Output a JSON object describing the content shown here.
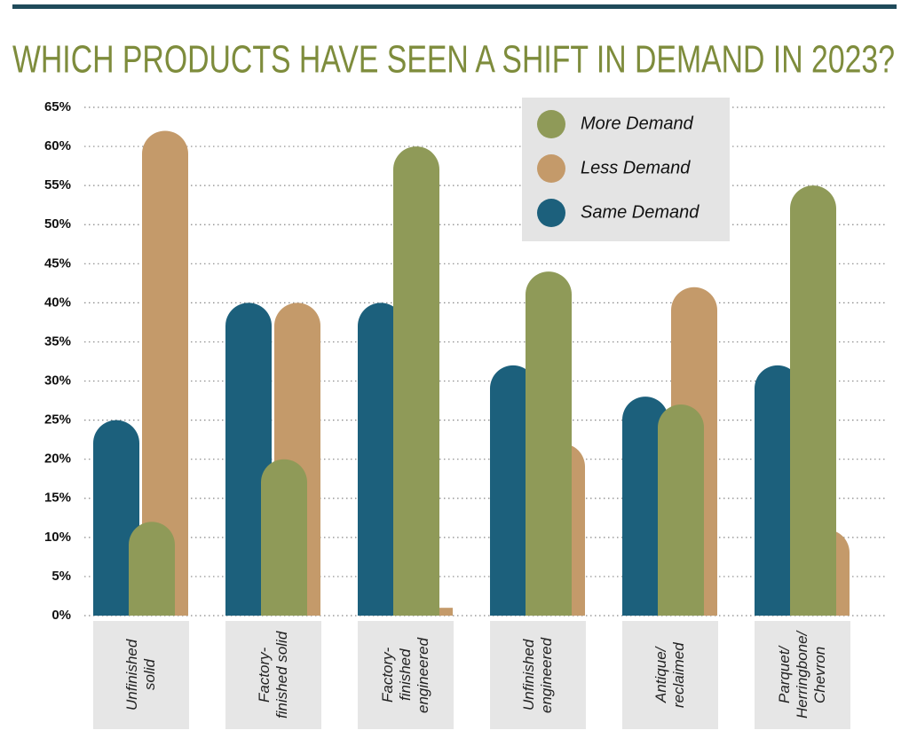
{
  "chart_data": {
    "type": "bar",
    "title": "WHICH PRODUCTS HAVE SEEN A SHIFT IN DEMAND IN 2023?",
    "categories": [
      "Unfinished solid",
      "Factory-finished solid",
      "Factory-finished engineered",
      "Unfinished engineered",
      "Antique/reclaimed",
      "Parquet/Herringbone/Chevron"
    ],
    "series": [
      {
        "name": "More Demand",
        "color": "#8f9a58",
        "values": [
          12,
          20,
          60,
          44,
          27,
          55
        ]
      },
      {
        "name": "Less Demand",
        "color": "#c49a6a",
        "values": [
          62,
          40,
          1,
          22,
          42,
          11
        ]
      },
      {
        "name": "Same Demand",
        "color": "#1c607c",
        "values": [
          25,
          40,
          40,
          32,
          28,
          32
        ]
      }
    ],
    "ylim": [
      0,
      65
    ],
    "yticks": [
      {
        "value": 0,
        "label": "0%"
      },
      {
        "value": 5,
        "label": "5%"
      },
      {
        "value": 10,
        "label": "10%"
      },
      {
        "value": 15,
        "label": "15%"
      },
      {
        "value": 20,
        "label": "20%"
      },
      {
        "value": 25,
        "label": "25%"
      },
      {
        "value": 30,
        "label": "30%"
      },
      {
        "value": 35,
        "label": "35%"
      },
      {
        "value": 40,
        "label": "40%"
      },
      {
        "value": 45,
        "label": "45%"
      },
      {
        "value": 50,
        "label": "50%"
      },
      {
        "value": 55,
        "label": "55%"
      },
      {
        "value": 60,
        "label": "60%"
      },
      {
        "value": 65,
        "label": "65%"
      }
    ],
    "grid": true,
    "legend": "top-right"
  }
}
